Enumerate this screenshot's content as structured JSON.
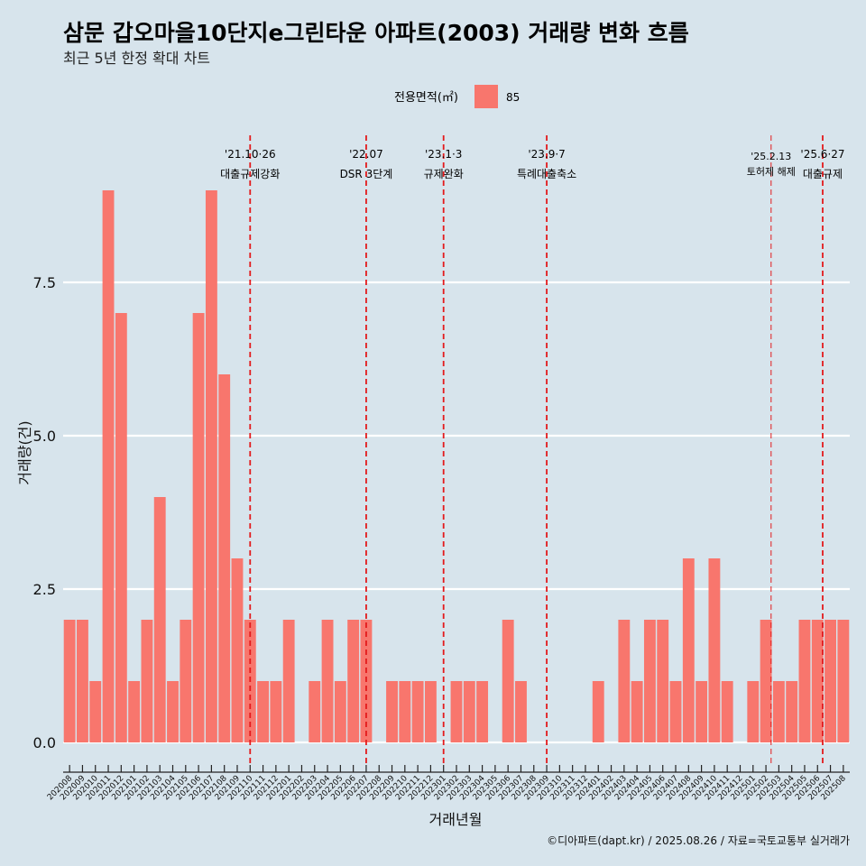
{
  "title": "삼문 갑오마을10단지e그린타운 아파트(2003) 거래량 변화 흐름",
  "subtitle": "최근 5년 한정 확대 차트",
  "caption": "©디아파트(dapt.kr) / 2025.08.26 / 자료=국토교통부 실거래가",
  "legend": {
    "title": "전용면적(㎡)",
    "label": "85",
    "color": "#f8766d"
  },
  "colors": {
    "background": "#d7e4ec",
    "bar": "#f8766d",
    "grid": "#ffffff",
    "event_line": "#e31a1c"
  },
  "chart_data": {
    "type": "bar",
    "title": "삼문 갑오마을10단지e그린타운 아파트(2003) 거래량 변화 흐름",
    "subtitle": "최근 5년 한정 확대 차트",
    "xlabel": "거래년월",
    "ylabel": "거래량(건)",
    "ylim": [
      0,
      9.5
    ],
    "yticks": [
      0,
      2.5,
      5,
      7.5
    ],
    "ytick_labels": [
      "0.0",
      "2.5",
      "5.0",
      "7.5"
    ],
    "grid": true,
    "legend_position": "top",
    "categories": [
      "202008",
      "202009",
      "202010",
      "202011",
      "202012",
      "202101",
      "202102",
      "202103",
      "202104",
      "202105",
      "202106",
      "202107",
      "202108",
      "202109",
      "202110",
      "202111",
      "202112",
      "202201",
      "202202",
      "202203",
      "202204",
      "202205",
      "202206",
      "202207",
      "202208",
      "202209",
      "202210",
      "202211",
      "202212",
      "202301",
      "202302",
      "202303",
      "202304",
      "202305",
      "202306",
      "202307",
      "202308",
      "202309",
      "202310",
      "202311",
      "202312",
      "202401",
      "202402",
      "202403",
      "202404",
      "202405",
      "202406",
      "202407",
      "202408",
      "202409",
      "202410",
      "202411",
      "202412",
      "202501",
      "202502",
      "202503",
      "202504",
      "202505",
      "202506",
      "202507",
      "202508"
    ],
    "series": [
      {
        "name": "85",
        "values": [
          2,
          2,
          1,
          9,
          7,
          1,
          2,
          4,
          1,
          2,
          7,
          9,
          6,
          3,
          2,
          1,
          1,
          2,
          0,
          1,
          2,
          1,
          2,
          2,
          0,
          1,
          1,
          1,
          1,
          0,
          1,
          1,
          1,
          0,
          2,
          1,
          0,
          0,
          0,
          0,
          0,
          1,
          0,
          2,
          1,
          2,
          2,
          1,
          3,
          1,
          3,
          1,
          0,
          1,
          2,
          1,
          1,
          2,
          2,
          2,
          2
        ]
      }
    ],
    "annotations": [
      {
        "category": "202110",
        "offset": 0,
        "date": "'21.10·26",
        "label": "대출규제강화",
        "style": "bold"
      },
      {
        "category": "202207",
        "offset": 0,
        "date": "'22.07",
        "label": "DSR 3단계",
        "style": "bold"
      },
      {
        "category": "202301",
        "offset": 0,
        "date": "'23.1·3",
        "label": "규제완화",
        "style": "bold"
      },
      {
        "category": "202309",
        "offset": 0,
        "date": "'23.9·7",
        "label": "특례대출축소",
        "style": "bold"
      },
      {
        "category": "202502",
        "offset": 0.4,
        "date": "'25.2.13",
        "label": "토허제 해제",
        "style": "light"
      },
      {
        "category": "202506",
        "offset": 0.4,
        "date": "'25.6·27",
        "label": "대출규제",
        "style": "bold"
      }
    ]
  }
}
